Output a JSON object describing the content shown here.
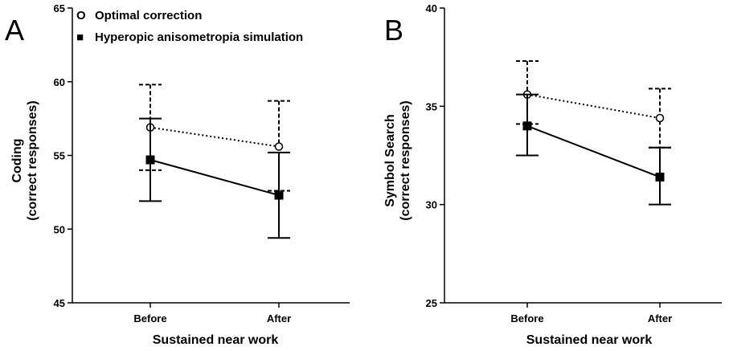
{
  "chart_data": [
    {
      "type": "line",
      "panel_label": "A",
      "xlabel": "Sustained near work",
      "ylabel": [
        "Coding",
        "(correct responses)"
      ],
      "categories": [
        "Before",
        "After"
      ],
      "ylim": [
        45,
        65
      ],
      "yticks": [
        45,
        50,
        55,
        60,
        65
      ],
      "series": [
        {
          "name": "Optimal correction",
          "marker": "open-circle",
          "line_style": "dotted",
          "error_style": "dashed",
          "values": [
            56.9,
            55.6
          ],
          "error_low": [
            54.0,
            52.6
          ],
          "error_high": [
            59.8,
            58.7
          ]
        },
        {
          "name": "Hyperopic anisometropia simulation",
          "marker": "filled-square",
          "line_style": "solid",
          "error_style": "solid",
          "values": [
            54.7,
            52.3
          ],
          "error_low": [
            51.9,
            49.4
          ],
          "error_high": [
            57.5,
            55.2
          ]
        }
      ],
      "legend": {
        "placement": "top",
        "items": [
          {
            "symbol": "O",
            "label": "Optimal correction"
          },
          {
            "symbol": "■",
            "label": "Hyperopic anisometropia simulation"
          }
        ]
      }
    },
    {
      "type": "line",
      "panel_label": "B",
      "xlabel": "Sustained near work",
      "ylabel": [
        "Symbol Search",
        "(correct responses)"
      ],
      "categories": [
        "Before",
        "After"
      ],
      "ylim": [
        25,
        40
      ],
      "yticks": [
        25,
        30,
        35,
        40
      ],
      "series": [
        {
          "name": "Optimal correction",
          "marker": "open-circle",
          "line_style": "dotted",
          "error_style": "dashed",
          "values": [
            35.6,
            34.4
          ],
          "error_low": [
            34.1,
            32.9
          ],
          "error_high": [
            37.3,
            35.9
          ]
        },
        {
          "name": "Hyperopic anisometropia simulation",
          "marker": "filled-square",
          "line_style": "solid",
          "error_style": "solid",
          "values": [
            34.0,
            31.4
          ],
          "error_low": [
            32.5,
            30.0
          ],
          "error_high": [
            35.6,
            32.9
          ]
        }
      ]
    }
  ]
}
